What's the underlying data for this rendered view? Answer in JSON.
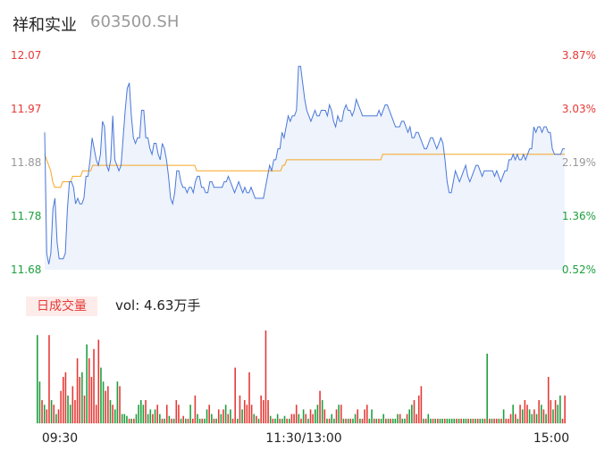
{
  "header": {
    "name": "祥和实业",
    "code": "603500.SH"
  },
  "volume_panel": {
    "badge": "日成交量",
    "text": "vol: 4.63万手"
  },
  "colors": {
    "price_line": "#4a78d8",
    "avg_line": "#f5a623",
    "up": "#e53935",
    "down": "#1e9e3e",
    "neutral": "#999999",
    "area_fill": "#eef3fc"
  },
  "chart_data": [
    {
      "type": "line",
      "title": "",
      "ylim": [
        11.68,
        12.07
      ],
      "y_ticks": [
        "12.07",
        "11.97",
        "11.88",
        "11.78",
        "11.68"
      ],
      "pct_ticks": [
        "3.87%",
        "3.03%",
        "2.19%",
        "1.36%",
        "0.52%"
      ],
      "series": [
        {
          "values": [
            11.93,
            11.71,
            11.69,
            11.71,
            11.79,
            11.81,
            11.73,
            11.7,
            11.7,
            11.7,
            11.71,
            11.79,
            11.84,
            11.84,
            11.83,
            11.8,
            11.81,
            11.8,
            11.8,
            11.81,
            11.85,
            11.85,
            11.88,
            11.92,
            11.9,
            11.88,
            11.87,
            11.89,
            11.95,
            11.94,
            11.87,
            11.86,
            11.88,
            11.96,
            11.88,
            11.87,
            11.86,
            11.87,
            11.92,
            11.97,
            12.01,
            12.02,
            11.96,
            11.92,
            11.91,
            11.92,
            11.92,
            11.97,
            11.97,
            11.92,
            11.92,
            11.9,
            11.89,
            11.91,
            11.91,
            11.89,
            11.88,
            11.91,
            11.9,
            11.88,
            11.85,
            11.81,
            11.8,
            11.82,
            11.86,
            11.86,
            11.84,
            11.83,
            11.83,
            11.82,
            11.83,
            11.83,
            11.82,
            11.84,
            11.85,
            11.85,
            11.83,
            11.83,
            11.82,
            11.82,
            11.84,
            11.84,
            11.83,
            11.83,
            11.83,
            11.83,
            11.83,
            11.84,
            11.84,
            11.85,
            11.84,
            11.83,
            11.82,
            11.83,
            11.84,
            11.83,
            11.82,
            11.83,
            11.82,
            11.82,
            11.83,
            11.82,
            11.81,
            11.81,
            11.81,
            11.81,
            11.81,
            11.83,
            11.85,
            11.87,
            11.86,
            11.88,
            11.88,
            11.9,
            11.9,
            11.93,
            11.92,
            11.94,
            11.96,
            11.95,
            11.96,
            11.96,
            11.97,
            12.05,
            12.05,
            12.02,
            11.99,
            11.97,
            11.96,
            11.95,
            11.96,
            11.97,
            11.96,
            11.96,
            11.97,
            11.97,
            11.97,
            11.96,
            11.98,
            11.97,
            11.95,
            11.94,
            11.96,
            11.95,
            11.95,
            11.97,
            11.98,
            11.97,
            11.97,
            11.96,
            11.97,
            11.99,
            11.98,
            11.97,
            11.96,
            11.96,
            11.96,
            11.96,
            11.96,
            11.96,
            11.96,
            11.96,
            11.97,
            11.96,
            11.97,
            11.98,
            11.98,
            11.97,
            11.96,
            11.95,
            11.94,
            11.94,
            11.94,
            11.95,
            11.95,
            11.94,
            11.93,
            11.94,
            11.92,
            11.92,
            11.93,
            11.93,
            11.92,
            11.91,
            11.9,
            11.9,
            11.91,
            11.92,
            11.92,
            11.91,
            11.9,
            11.91,
            11.92,
            11.91,
            11.88,
            11.84,
            11.82,
            11.82,
            11.84,
            11.86,
            11.85,
            11.84,
            11.85,
            11.86,
            11.87,
            11.85,
            11.84,
            11.85,
            11.86,
            11.87,
            11.87,
            11.86,
            11.85,
            11.86,
            11.86,
            11.86,
            11.86,
            11.86,
            11.85,
            11.86,
            11.85,
            11.84,
            11.85,
            11.86,
            11.86,
            11.88,
            11.88,
            11.89,
            11.88,
            11.89,
            11.88,
            11.88,
            11.89,
            11.88,
            11.89,
            11.9,
            11.9,
            11.94,
            11.93,
            11.94,
            11.94,
            11.93,
            11.94,
            11.94,
            11.93,
            11.93,
            11.9,
            11.89,
            11.89,
            11.89,
            11.89,
            11.9,
            11.9
          ]
        },
        {
          "values": [
            11.89,
            11.88,
            11.87,
            11.86,
            11.84,
            11.83,
            11.83,
            11.83,
            11.83,
            11.84,
            11.84,
            11.84,
            11.84,
            11.84,
            11.85,
            11.85,
            11.85,
            11.85,
            11.85,
            11.86,
            11.86,
            11.86,
            11.86,
            11.86,
            11.87,
            11.87,
            11.87,
            11.87,
            11.87,
            11.87,
            11.87,
            11.87,
            11.87,
            11.87,
            11.87,
            11.87,
            11.87,
            11.87,
            11.87,
            11.87,
            11.87,
            11.87,
            11.87,
            11.87,
            11.87,
            11.87,
            11.87,
            11.87,
            11.87,
            11.87,
            11.87,
            11.87,
            11.87,
            11.87,
            11.87,
            11.87,
            11.87,
            11.87,
            11.87,
            11.87,
            11.87,
            11.87,
            11.87,
            11.87,
            11.87,
            11.87,
            11.87,
            11.87,
            11.87,
            11.87,
            11.87,
            11.87,
            11.87,
            11.87,
            11.87,
            11.87,
            11.86,
            11.86,
            11.86,
            11.86,
            11.86,
            11.86,
            11.86,
            11.86,
            11.86,
            11.86,
            11.86,
            11.86,
            11.86,
            11.86,
            11.86,
            11.86,
            11.86,
            11.86,
            11.86,
            11.86,
            11.86,
            11.86,
            11.86,
            11.86,
            11.86,
            11.86,
            11.86,
            11.86,
            11.86,
            11.86,
            11.86,
            11.86,
            11.86,
            11.86,
            11.86,
            11.86,
            11.86,
            11.86,
            11.86,
            11.86,
            11.86,
            11.86,
            11.86,
            11.87,
            11.87,
            11.88,
            11.88,
            11.88,
            11.88,
            11.88,
            11.88,
            11.88,
            11.88,
            11.88,
            11.88,
            11.88,
            11.88,
            11.88,
            11.88,
            11.88,
            11.88,
            11.88,
            11.88,
            11.88,
            11.88,
            11.88,
            11.88,
            11.88,
            11.88,
            11.88,
            11.88,
            11.88,
            11.88,
            11.88,
            11.88,
            11.88,
            11.88,
            11.88,
            11.88,
            11.88,
            11.88,
            11.88,
            11.88,
            11.88,
            11.88,
            11.88,
            11.88,
            11.88,
            11.88,
            11.88,
            11.88,
            11.88,
            11.88,
            11.89,
            11.89,
            11.89,
            11.89,
            11.89,
            11.89,
            11.89,
            11.89,
            11.89,
            11.89,
            11.89,
            11.89,
            11.89,
            11.89,
            11.89,
            11.89,
            11.89,
            11.89,
            11.89,
            11.89,
            11.89,
            11.89,
            11.89,
            11.89,
            11.89,
            11.89,
            11.89,
            11.89,
            11.89,
            11.89,
            11.89,
            11.89,
            11.89,
            11.89,
            11.89,
            11.89,
            11.89,
            11.89,
            11.89,
            11.89,
            11.89,
            11.89,
            11.89,
            11.89,
            11.89,
            11.89,
            11.89,
            11.89,
            11.89,
            11.89,
            11.89,
            11.89,
            11.89,
            11.89,
            11.89,
            11.89,
            11.89,
            11.89,
            11.89,
            11.89,
            11.89,
            11.89,
            11.89,
            11.89,
            11.89,
            11.89,
            11.89,
            11.89,
            11.89,
            11.89,
            11.89,
            11.89,
            11.89,
            11.89,
            11.89,
            11.89,
            11.89,
            11.89,
            11.89,
            11.89,
            11.89,
            11.89,
            11.89,
            11.89,
            11.89,
            11.89,
            11.89,
            11.89,
            11.89,
            11.89,
            11.89,
            11.89
          ]
        }
      ]
    },
    {
      "type": "bar",
      "title": "",
      "x_ticks": [
        "09:30",
        "11:30/13:00",
        "15:00"
      ],
      "values": [
        0.95,
        0.45,
        0.25,
        0.2,
        0.15,
        0.95,
        0.25,
        0.2,
        0.1,
        0.15,
        0.35,
        0.5,
        0.55,
        0.3,
        0.2,
        0.4,
        0.25,
        0.7,
        0.5,
        0.55,
        0.3,
        0.85,
        0.7,
        0.5,
        0.8,
        0.2,
        0.9,
        0.6,
        0.45,
        0.35,
        0.4,
        0.25,
        0.2,
        0.15,
        0.45,
        0.4,
        0.1,
        0.1,
        0.08,
        0.05,
        0.05,
        0.05,
        0.1,
        0.2,
        0.25,
        0.2,
        0.25,
        0.1,
        0.15,
        0.1,
        0.15,
        0.2,
        0.1,
        0.05,
        0.05,
        0.2,
        0.08,
        0.05,
        0.05,
        0.25,
        0.2,
        0.05,
        0.08,
        0.05,
        0.05,
        0.2,
        0.05,
        0.3,
        0.1,
        0.05,
        0.05,
        0.05,
        0.15,
        0.2,
        0.1,
        0.05,
        0.05,
        0.15,
        0.1,
        0.15,
        0.2,
        0.1,
        0.15,
        0.05,
        0.6,
        0.05,
        0.3,
        0.15,
        0.25,
        0.2,
        0.55,
        0.2,
        0.1,
        0.08,
        0.05,
        0.3,
        0.25,
        1.0,
        0.25,
        0.08,
        0.05,
        0.05,
        0.1,
        0.05,
        0.05,
        0.08,
        0.05,
        0.05,
        0.1,
        0.1,
        0.2,
        0.1,
        0.05,
        0.15,
        0.1,
        0.05,
        0.15,
        0.1,
        0.15,
        0.2,
        0.35,
        0.25,
        0.15,
        0.05,
        0.05,
        0.1,
        0.05,
        0.15,
        0.2,
        0.2,
        0.05,
        0.05,
        0.05,
        0.05,
        0.05,
        0.1,
        0.15,
        0.05,
        0.05,
        0.15,
        0.2,
        0.05,
        0.15,
        0.05,
        0.05,
        0.05,
        0.05,
        0.1,
        0.05,
        0.05,
        0.05,
        0.05,
        0.05,
        0.1,
        0.1,
        0.05,
        0.05,
        0.1,
        0.15,
        0.2,
        0.25,
        0.1,
        0.3,
        0.4,
        0.05,
        0.05,
        0.1,
        0.05,
        0.05,
        0.05,
        0.05,
        0.05,
        0.05,
        0.05,
        0.05,
        0.05,
        0.05,
        0.05,
        0.05,
        0.05,
        0.05,
        0.05,
        0.05,
        0.05,
        0.05,
        0.05,
        0.05,
        0.05,
        0.05,
        0.05,
        0.05,
        0.75,
        0.05,
        0.05,
        0.05,
        0.05,
        0.05,
        0.05,
        0.15,
        0.05,
        0.05,
        0.1,
        0.2,
        0.1,
        0.05,
        0.2,
        0.15,
        0.25,
        0.2,
        0.15,
        0.1,
        0.15,
        0.1,
        0.25,
        0.2,
        0.15,
        0.1,
        0.5,
        0.25,
        0.15,
        0.25,
        0.2,
        0.3,
        0.05,
        0.3
      ],
      "colors": [
        "d",
        "d",
        "u",
        "d",
        "u",
        "u",
        "d",
        "u",
        "d",
        "u",
        "u",
        "u",
        "u",
        "d",
        "d",
        "u",
        "u",
        "u",
        "u",
        "d",
        "u",
        "d",
        "u",
        "u",
        "u",
        "u",
        "u",
        "d",
        "d",
        "u",
        "u",
        "d",
        "u",
        "d",
        "d",
        "u",
        "d",
        "d",
        "d",
        "u",
        "d",
        "u",
        "d",
        "d",
        "d",
        "d",
        "u",
        "d",
        "d",
        "u",
        "d",
        "u",
        "d",
        "u",
        "d",
        "u",
        "d",
        "u",
        "d",
        "u",
        "u",
        "d",
        "u",
        "d",
        "u",
        "d",
        "u",
        "u",
        "d",
        "d",
        "u",
        "d",
        "d",
        "u",
        "d",
        "u",
        "d",
        "u",
        "d",
        "u",
        "d",
        "u",
        "d",
        "u",
        "u",
        "d",
        "u",
        "d",
        "u",
        "u",
        "u",
        "u",
        "d",
        "u",
        "d",
        "u",
        "u",
        "u",
        "u",
        "d",
        "u",
        "d",
        "d",
        "u",
        "d",
        "d",
        "u",
        "d",
        "u",
        "u",
        "u",
        "d",
        "u",
        "d",
        "u",
        "d",
        "u",
        "u",
        "d",
        "d",
        "u",
        "d",
        "u",
        "d",
        "u",
        "d",
        "d",
        "u",
        "d",
        "u",
        "d",
        "u",
        "d",
        "u",
        "d",
        "d",
        "u",
        "d",
        "u",
        "u",
        "u",
        "d",
        "d",
        "u",
        "d",
        "u",
        "d",
        "d",
        "u",
        "d",
        "u",
        "d",
        "d",
        "d",
        "u",
        "d",
        "d",
        "u",
        "d",
        "d",
        "u",
        "u",
        "u",
        "u",
        "d",
        "u",
        "d",
        "d",
        "u",
        "d",
        "u",
        "d",
        "d",
        "u",
        "d",
        "d",
        "d",
        "d",
        "u",
        "d",
        "u",
        "d",
        "d",
        "u",
        "d",
        "u",
        "d",
        "u",
        "d",
        "d",
        "u",
        "d",
        "u",
        "d",
        "u",
        "u",
        "d",
        "u",
        "d",
        "u",
        "u",
        "u",
        "d",
        "u",
        "d",
        "u",
        "d",
        "u",
        "u",
        "d",
        "d",
        "u",
        "d",
        "u",
        "d",
        "u",
        "d",
        "u",
        "u",
        "d",
        "u",
        "d",
        "d",
        "u",
        "u",
        "d",
        "u",
        "n"
      ]
    }
  ]
}
